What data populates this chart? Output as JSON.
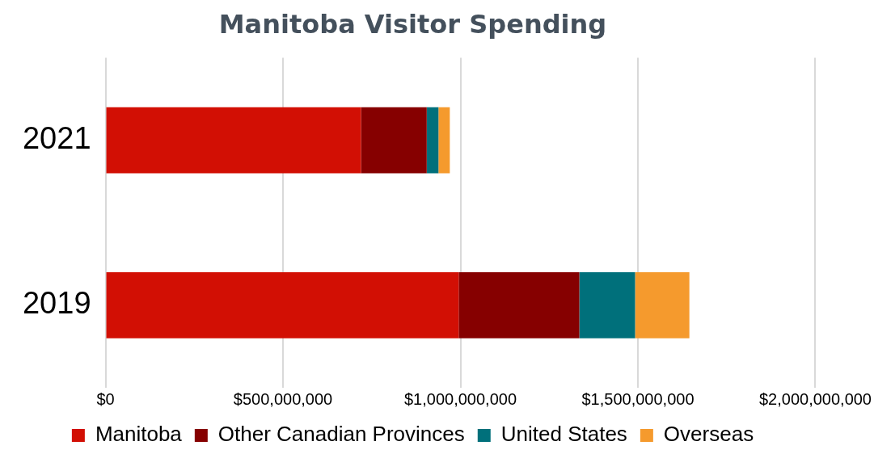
{
  "chart_data": {
    "type": "bar",
    "title": "Manitoba Visitor Spending",
    "orientation": "horizontal",
    "stacked": true,
    "categories": [
      "2021",
      "2019"
    ],
    "series": [
      {
        "name": "Manitoba",
        "color": "#d20f04",
        "values": [
          720000000,
          995000000
        ]
      },
      {
        "name": "Other Canadian Provinces",
        "color": "#860000",
        "values": [
          185000000,
          340000000
        ]
      },
      {
        "name": "United States",
        "color": "#00707b",
        "values": [
          33000000,
          157000000
        ]
      },
      {
        "name": "Overseas",
        "color": "#f59a2d",
        "values": [
          32000000,
          153000000
        ]
      }
    ],
    "xlim": [
      0,
      2000000000
    ],
    "xticks": [
      {
        "value": 0,
        "label": "$0"
      },
      {
        "value": 500000000,
        "label": "$500,000,000"
      },
      {
        "value": 1000000000,
        "label": "$1,000,000,000"
      },
      {
        "value": 1500000000,
        "label": "$1,500,000,000"
      },
      {
        "value": 2000000000,
        "label": "$2,000,000,000"
      }
    ],
    "grid": "x",
    "legend": "bottom"
  }
}
